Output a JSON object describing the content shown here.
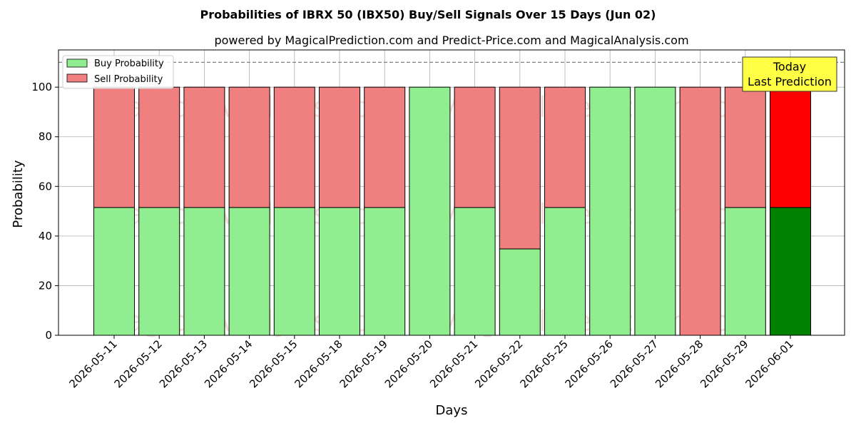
{
  "chart_data": {
    "type": "bar",
    "stacked": true,
    "title": "Probabilities of IBRX 50 (IBX50) Buy/Sell Signals Over 15 Days (Jun 02)",
    "subtitle": "powered by MagicalPrediction.com and Predict-Price.com and MagicalAnalysis.com",
    "xlabel": "Days",
    "ylabel": "Probability",
    "ylim": [
      0,
      115
    ],
    "yticks": [
      0,
      20,
      40,
      60,
      80,
      100
    ],
    "grid": true,
    "legend_position": "top-left",
    "reference_line": 110,
    "categories": [
      "2026-05-11",
      "2026-05-12",
      "2026-05-13",
      "2026-05-14",
      "2026-05-15",
      "2026-05-18",
      "2026-05-19",
      "2026-05-20",
      "2026-05-21",
      "2026-05-22",
      "2026-05-25",
      "2026-05-26",
      "2026-05-27",
      "2026-05-28",
      "2026-05-29",
      "2026-06-01"
    ],
    "series": [
      {
        "name": "Buy Probability",
        "color": "#90ee90",
        "highlight_color": "#008000",
        "values": [
          51.5,
          51.5,
          51.5,
          51.5,
          51.5,
          51.5,
          51.5,
          100,
          51.5,
          34.8,
          51.5,
          100,
          100,
          0,
          51.5,
          51.5
        ]
      },
      {
        "name": "Sell Probability",
        "color": "#f08080",
        "highlight_color": "#ff0000",
        "values": [
          48.5,
          48.5,
          48.5,
          48.5,
          48.5,
          48.5,
          48.5,
          0,
          48.5,
          65.2,
          48.5,
          0,
          0,
          100,
          48.5,
          48.5
        ]
      }
    ],
    "annotation": {
      "line1": "Today",
      "line2": "Last Prediction",
      "color": "#ffff44"
    },
    "watermarks": [
      "MagicalAnalysis.com",
      "MagicalPrediction.com"
    ]
  }
}
